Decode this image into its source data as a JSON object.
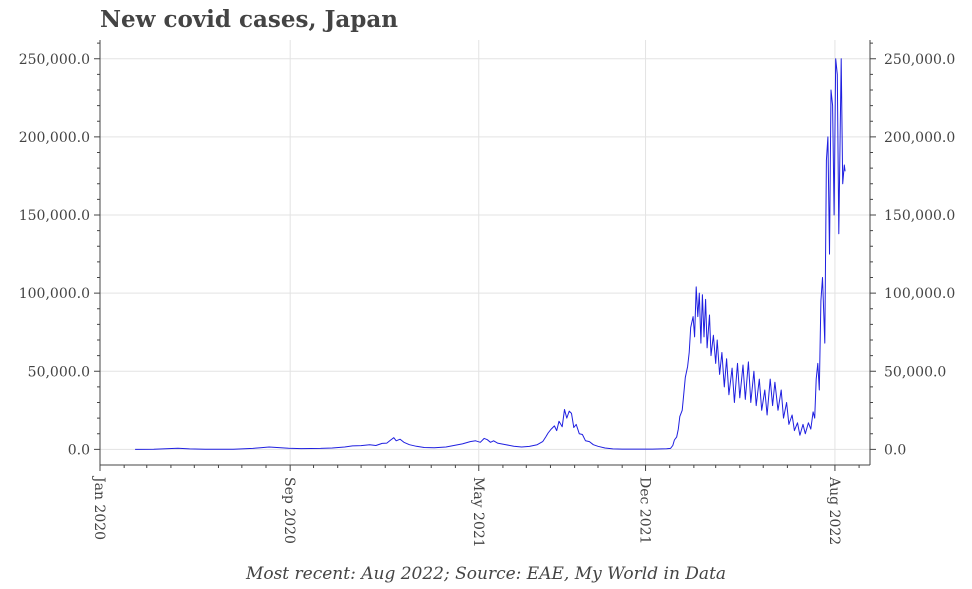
{
  "chart_data": {
    "type": "line",
    "title": "New covid cases, Japan",
    "caption": "Most recent: Aug 2022; Source: EAE, My World in Data",
    "xlabel": "",
    "ylabel": "",
    "xlim": [
      "2020-01-01",
      "2022-09-15"
    ],
    "ylim": [
      -10000,
      262000
    ],
    "y_ticks": [
      0,
      50000,
      100000,
      150000,
      200000,
      250000
    ],
    "y_tick_labels": [
      "0.0",
      "50,000.0",
      "100,000.0",
      "150,000.0",
      "200,000.0",
      "250,000.0"
    ],
    "x_ticks": [
      "2020-01-01",
      "2020-09-01",
      "2021-05-01",
      "2021-12-01",
      "2022-08-01"
    ],
    "x_tick_labels": [
      "Jan 2020",
      "Sep 2020",
      "May 2021",
      "Dec 2021",
      "Aug 2022"
    ],
    "grid": true,
    "right_axis": true,
    "line_color": "#1f1fe0",
    "series": [
      {
        "name": "",
        "points": [
          [
            "2020-02-15",
            0
          ],
          [
            "2020-03-10",
            80
          ],
          [
            "2020-04-10",
            700
          ],
          [
            "2020-04-25",
            300
          ],
          [
            "2020-05-15",
            50
          ],
          [
            "2020-06-20",
            80
          ],
          [
            "2020-07-15",
            600
          ],
          [
            "2020-07-25",
            1100
          ],
          [
            "2020-08-05",
            1500
          ],
          [
            "2020-08-15",
            1200
          ],
          [
            "2020-08-30",
            700
          ],
          [
            "2020-09-15",
            500
          ],
          [
            "2020-10-10",
            600
          ],
          [
            "2020-10-25",
            900
          ],
          [
            "2020-11-10",
            1500
          ],
          [
            "2020-11-20",
            2200
          ],
          [
            "2020-12-01",
            2400
          ],
          [
            "2020-12-12",
            3000
          ],
          [
            "2020-12-20",
            2500
          ],
          [
            "2020-12-28",
            3800
          ],
          [
            "2021-01-03",
            4000
          ],
          [
            "2021-01-08",
            6000
          ],
          [
            "2021-01-12",
            7500
          ],
          [
            "2021-01-15",
            5500
          ],
          [
            "2021-01-20",
            6500
          ],
          [
            "2021-01-25",
            4500
          ],
          [
            "2021-02-01",
            3000
          ],
          [
            "2021-02-10",
            2000
          ],
          [
            "2021-02-20",
            1200
          ],
          [
            "2021-03-05",
            1000
          ],
          [
            "2021-03-20",
            1500
          ],
          [
            "2021-03-30",
            2500
          ],
          [
            "2021-04-10",
            3500
          ],
          [
            "2021-04-20",
            5000
          ],
          [
            "2021-04-27",
            5500
          ],
          [
            "2021-05-03",
            4500
          ],
          [
            "2021-05-08",
            7000
          ],
          [
            "2021-05-12",
            6200
          ],
          [
            "2021-05-16",
            4500
          ],
          [
            "2021-05-20",
            5500
          ],
          [
            "2021-05-25",
            4000
          ],
          [
            "2021-06-05",
            3000
          ],
          [
            "2021-06-15",
            2000
          ],
          [
            "2021-06-25",
            1500
          ],
          [
            "2021-07-05",
            1900
          ],
          [
            "2021-07-15",
            3000
          ],
          [
            "2021-07-22",
            5000
          ],
          [
            "2021-07-26",
            8000
          ],
          [
            "2021-07-29",
            10500
          ],
          [
            "2021-08-02",
            13000
          ],
          [
            "2021-08-06",
            15000
          ],
          [
            "2021-08-09",
            12000
          ],
          [
            "2021-08-12",
            18000
          ],
          [
            "2021-08-16",
            14500
          ],
          [
            "2021-08-19",
            25500
          ],
          [
            "2021-08-22",
            20000
          ],
          [
            "2021-08-25",
            24500
          ],
          [
            "2021-08-28",
            23000
          ],
          [
            "2021-08-31",
            14000
          ],
          [
            "2021-09-03",
            16000
          ],
          [
            "2021-09-07",
            10000
          ],
          [
            "2021-09-11",
            9500
          ],
          [
            "2021-09-15",
            5500
          ],
          [
            "2021-09-20",
            5000
          ],
          [
            "2021-09-25",
            3000
          ],
          [
            "2021-10-01",
            2000
          ],
          [
            "2021-10-10",
            900
          ],
          [
            "2021-10-20",
            300
          ],
          [
            "2021-11-01",
            200
          ],
          [
            "2021-11-20",
            150
          ],
          [
            "2021-12-10",
            200
          ],
          [
            "2021-12-28",
            400
          ],
          [
            "2022-01-02",
            600
          ],
          [
            "2022-01-05",
            2500
          ],
          [
            "2022-01-07",
            6000
          ],
          [
            "2022-01-10",
            8000
          ],
          [
            "2022-01-12",
            13000
          ],
          [
            "2022-01-14",
            21000
          ],
          [
            "2022-01-17",
            25000
          ],
          [
            "2022-01-19",
            35000
          ],
          [
            "2022-01-21",
            46000
          ],
          [
            "2022-01-24",
            53000
          ],
          [
            "2022-01-26",
            62000
          ],
          [
            "2022-01-28",
            78000
          ],
          [
            "2022-01-31",
            85000
          ],
          [
            "2022-02-02",
            72000
          ],
          [
            "2022-02-04",
            104000
          ],
          [
            "2022-02-06",
            85000
          ],
          [
            "2022-02-08",
            100000
          ],
          [
            "2022-02-10",
            68000
          ],
          [
            "2022-02-12",
            99000
          ],
          [
            "2022-02-14",
            72000
          ],
          [
            "2022-02-16",
            96000
          ],
          [
            "2022-02-18",
            65000
          ],
          [
            "2022-02-21",
            86000
          ],
          [
            "2022-02-23",
            60000
          ],
          [
            "2022-02-26",
            73000
          ],
          [
            "2022-03-01",
            55000
          ],
          [
            "2022-03-03",
            70000
          ],
          [
            "2022-03-06",
            48000
          ],
          [
            "2022-03-09",
            62000
          ],
          [
            "2022-03-12",
            40000
          ],
          [
            "2022-03-15",
            58000
          ],
          [
            "2022-03-18",
            35000
          ],
          [
            "2022-03-22",
            52000
          ],
          [
            "2022-03-25",
            30000
          ],
          [
            "2022-03-29",
            55000
          ],
          [
            "2022-04-01",
            33000
          ],
          [
            "2022-04-05",
            54000
          ],
          [
            "2022-04-08",
            32000
          ],
          [
            "2022-04-12",
            56000
          ],
          [
            "2022-04-15",
            30000
          ],
          [
            "2022-04-19",
            50000
          ],
          [
            "2022-04-22",
            28000
          ],
          [
            "2022-04-26",
            45000
          ],
          [
            "2022-04-29",
            25000
          ],
          [
            "2022-05-03",
            38000
          ],
          [
            "2022-05-06",
            22000
          ],
          [
            "2022-05-10",
            45000
          ],
          [
            "2022-05-13",
            28000
          ],
          [
            "2022-05-16",
            43000
          ],
          [
            "2022-05-20",
            25000
          ],
          [
            "2022-05-24",
            38000
          ],
          [
            "2022-05-27",
            20000
          ],
          [
            "2022-05-31",
            30000
          ],
          [
            "2022-06-03",
            16000
          ],
          [
            "2022-06-07",
            22000
          ],
          [
            "2022-06-10",
            12000
          ],
          [
            "2022-06-14",
            17000
          ],
          [
            "2022-06-17",
            9000
          ],
          [
            "2022-06-21",
            16000
          ],
          [
            "2022-06-24",
            10000
          ],
          [
            "2022-06-28",
            17000
          ],
          [
            "2022-07-01",
            13000
          ],
          [
            "2022-07-04",
            24000
          ],
          [
            "2022-07-06",
            20000
          ],
          [
            "2022-07-08",
            45000
          ],
          [
            "2022-07-10",
            55000
          ],
          [
            "2022-07-12",
            38000
          ],
          [
            "2022-07-14",
            95000
          ],
          [
            "2022-07-16",
            110000
          ],
          [
            "2022-07-19",
            68000
          ],
          [
            "2022-07-21",
            185000
          ],
          [
            "2022-07-23",
            200000
          ],
          [
            "2022-07-25",
            125000
          ],
          [
            "2022-07-27",
            230000
          ],
          [
            "2022-07-29",
            220000
          ],
          [
            "2022-07-31",
            150000
          ],
          [
            "2022-08-02",
            250000
          ],
          [
            "2022-08-04",
            240000
          ],
          [
            "2022-08-06",
            138000
          ],
          [
            "2022-08-09",
            250000
          ],
          [
            "2022-08-11",
            170000
          ],
          [
            "2022-08-13",
            182000
          ],
          [
            "2022-08-14",
            178000
          ]
        ]
      }
    ]
  }
}
